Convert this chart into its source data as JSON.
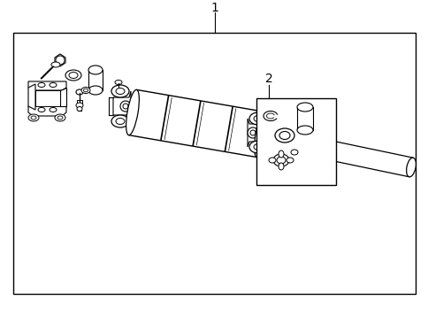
{
  "background_color": "#ffffff",
  "line_color": "#000000",
  "label1": "1",
  "label2": "2",
  "fig_width": 4.85,
  "fig_height": 3.57,
  "dpi": 100
}
